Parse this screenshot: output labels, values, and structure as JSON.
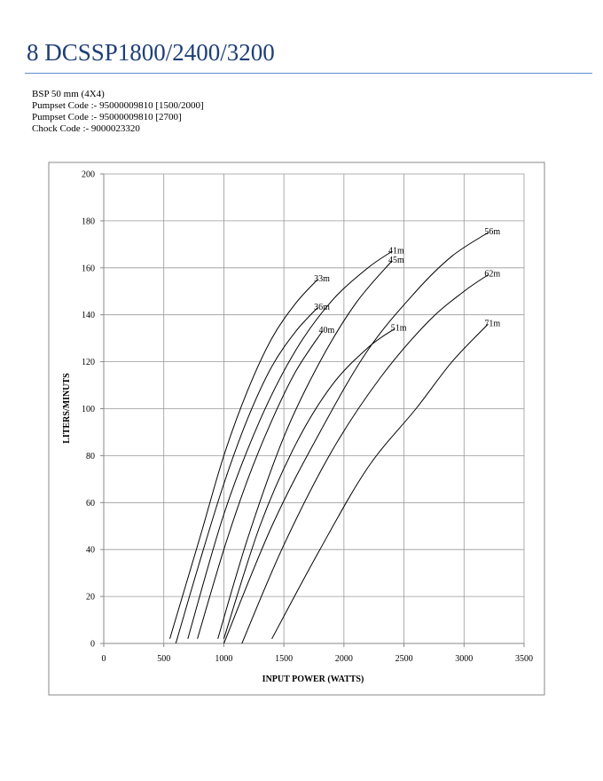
{
  "header": {
    "title": "8 DCSSP1800/2400/3200"
  },
  "info": [
    "BSP  50 mm (4X4)",
    "Pumpset Code :- 95000009810 [1500/2000]",
    "Pumpset Code :- 95000009810 [2700]",
    "Chock Code :-  9000023320"
  ],
  "chart_data": {
    "type": "line",
    "xlabel": "INPUT POWER (WATTS)",
    "ylabel": "LITERS/MINUTS",
    "xlim": [
      0,
      3500
    ],
    "ylim": [
      0,
      200
    ],
    "xticks": [
      0,
      500,
      1000,
      1500,
      2000,
      2500,
      3000,
      3500
    ],
    "yticks": [
      0,
      20,
      40,
      60,
      80,
      100,
      120,
      140,
      160,
      180,
      200
    ],
    "grid": true,
    "series": [
      {
        "name": "33m",
        "color": "#000000",
        "x": [
          550,
          800,
          1000,
          1200,
          1400,
          1600,
          1780
        ],
        "values": [
          2,
          45,
          80,
          108,
          130,
          145,
          155
        ]
      },
      {
        "name": "36m",
        "color": "#000000",
        "x": [
          600,
          800,
          1000,
          1200,
          1400,
          1600,
          1780
        ],
        "values": [
          0,
          35,
          68,
          96,
          118,
          133,
          143
        ]
      },
      {
        "name": "40m",
        "color": "#000000",
        "x": [
          780,
          1000,
          1200,
          1400,
          1600,
          1820
        ],
        "values": [
          2,
          40,
          70,
          95,
          116,
          133
        ]
      },
      {
        "name": "41m",
        "color": "#000000",
        "x": [
          700,
          1000,
          1300,
          1600,
          1900,
          2200,
          2400
        ],
        "values": [
          2,
          55,
          95,
          125,
          146,
          160,
          167
        ]
      },
      {
        "name": "45m",
        "color": "#000000",
        "x": [
          950,
          1200,
          1500,
          1800,
          2100,
          2400
        ],
        "values": [
          2,
          45,
          88,
          120,
          145,
          163
        ]
      },
      {
        "name": "51m",
        "color": "#000000",
        "x": [
          1000,
          1300,
          1600,
          1900,
          2200,
          2420
        ],
        "values": [
          2,
          50,
          85,
          110,
          126,
          134
        ]
      },
      {
        "name": "56m",
        "color": "#000000",
        "x": [
          1000,
          1400,
          1800,
          2200,
          2600,
          2900,
          3200
        ],
        "values": [
          0,
          50,
          90,
          125,
          150,
          165,
          175
        ]
      },
      {
        "name": "62m",
        "color": "#000000",
        "x": [
          1150,
          1500,
          1900,
          2300,
          2700,
          3000,
          3200
        ],
        "values": [
          0,
          42,
          82,
          113,
          137,
          150,
          157
        ]
      },
      {
        "name": "71m",
        "color": "#000000",
        "x": [
          1400,
          1800,
          2200,
          2600,
          2900,
          3200
        ],
        "values": [
          2,
          40,
          75,
          100,
          120,
          136
        ]
      }
    ]
  }
}
